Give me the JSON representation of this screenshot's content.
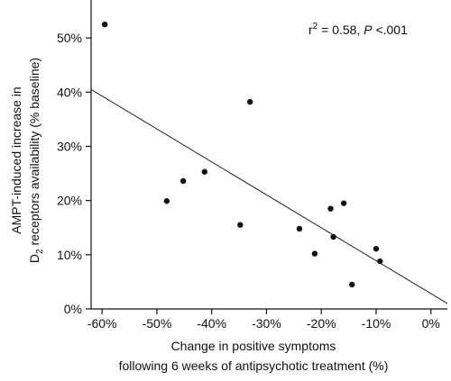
{
  "chart_data": {
    "type": "scatter",
    "x_ticks": [
      "-60%",
      "-50%",
      "-40%",
      "-30%",
      "-20%",
      "-10%",
      "0%"
    ],
    "x_tick_values": [
      -60,
      -50,
      -40,
      -30,
      -20,
      -10,
      0
    ],
    "y_ticks": [
      "0%",
      "10%",
      "20%",
      "30%",
      "40%",
      "50%"
    ],
    "y_tick_values": [
      0,
      10,
      20,
      30,
      40,
      50
    ],
    "xlim": [
      -62,
      3
    ],
    "ylim": [
      0,
      57
    ],
    "xlabel_line1": "Change in positive symptoms",
    "xlabel_line2": "following 6 weeks of antipsychotic treatment (%)",
    "ylabel_line1": "AMPT-induced increase in",
    "ylabel_line2_pre": "D",
    "ylabel_line2_sub": "2",
    "ylabel_line2_post": " receptors availability (% baseline)",
    "annotation": {
      "r_prefix": "r",
      "r_sup": "2",
      "r_value": " = 0.58, ",
      "p_label": "P",
      "p_value": " <.001"
    },
    "points": [
      {
        "x": -59.5,
        "y": 52.5
      },
      {
        "x": -33.0,
        "y": 38.2
      },
      {
        "x": -41.3,
        "y": 25.3
      },
      {
        "x": -45.2,
        "y": 23.6
      },
      {
        "x": -48.2,
        "y": 19.9
      },
      {
        "x": -34.8,
        "y": 15.5
      },
      {
        "x": -24.0,
        "y": 14.8
      },
      {
        "x": -21.2,
        "y": 10.2
      },
      {
        "x": -18.3,
        "y": 18.5
      },
      {
        "x": -17.8,
        "y": 13.3
      },
      {
        "x": -15.9,
        "y": 19.5
      },
      {
        "x": -14.4,
        "y": 4.5
      },
      {
        "x": -10.0,
        "y": 11.1
      },
      {
        "x": -9.3,
        "y": 8.8
      }
    ],
    "regression": {
      "x1": -62,
      "y1": 40.5,
      "x2": 3,
      "y2": 1.0
    },
    "grid": false
  }
}
